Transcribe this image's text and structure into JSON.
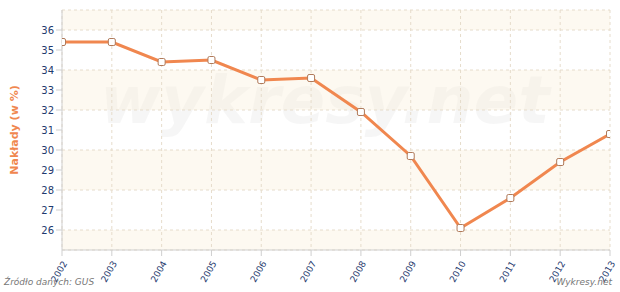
{
  "chart_data": {
    "type": "line",
    "y_label": "Nakłady (w %)",
    "source": "Źródło danych: GUS",
    "credit": "Wykresy.net",
    "watermark": "wykresy.net",
    "x": [
      2002,
      2003,
      2004,
      2005,
      2006,
      2007,
      2008,
      2009,
      2010,
      2011,
      2012,
      2013
    ],
    "xlim": [
      2002,
      2013
    ],
    "xticks": [
      2002,
      2003,
      2004,
      2005,
      2006,
      2007,
      2008,
      2009,
      2010,
      2011,
      2012,
      2013
    ],
    "values": [
      35.4,
      35.4,
      34.4,
      34.5,
      33.5,
      33.6,
      31.9,
      29.7,
      26.1,
      27.6,
      29.4,
      30.8
    ],
    "ylim": [
      25,
      37
    ],
    "yticks": [
      26,
      27,
      28,
      29,
      30,
      31,
      32,
      33,
      34,
      35,
      36
    ],
    "color": "#f0874f",
    "marker": "square",
    "grid": true
  }
}
